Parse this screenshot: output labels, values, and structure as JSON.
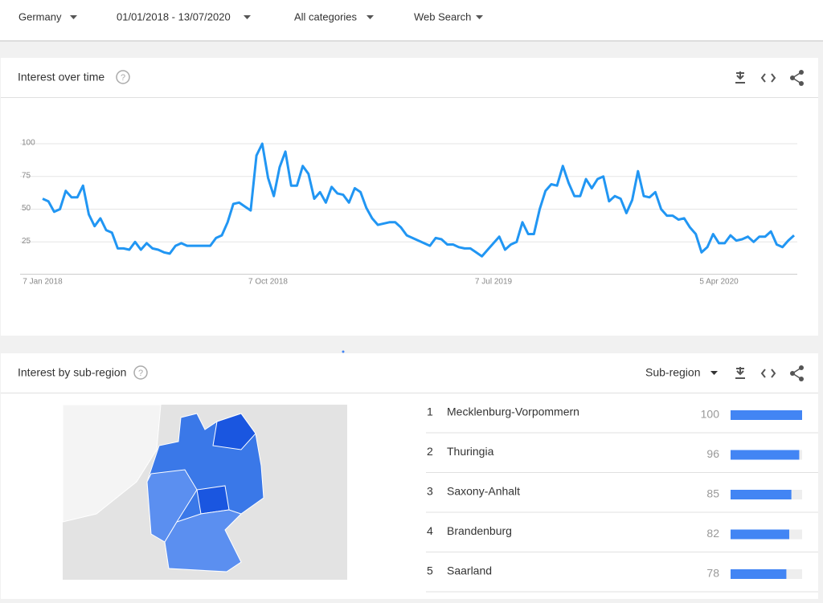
{
  "filters": [
    "Germany",
    "01/01/2018 - 13/07/2020",
    "All categories",
    "Web Search"
  ],
  "interest_over_time": {
    "title": "Interest over time",
    "chart": {
      "type": "line",
      "color": "#2196f3",
      "grid": true,
      "ylim": [
        0,
        100
      ],
      "yticks": [
        25,
        50,
        75,
        100
      ],
      "categories": [
        "7 Jan 2018",
        null,
        null,
        null,
        null,
        null,
        null,
        null,
        null,
        null,
        null,
        null,
        null,
        null,
        null,
        null,
        null,
        null,
        null,
        null,
        null,
        null,
        null,
        null,
        null,
        null,
        null,
        null,
        null,
        null,
        null,
        null,
        null,
        null,
        null,
        null,
        null,
        null,
        null,
        "7 Oct 2018",
        null,
        null,
        null,
        null,
        null,
        null,
        null,
        null,
        null,
        null,
        null,
        null,
        null,
        null,
        null,
        null,
        null,
        null,
        null,
        null,
        null,
        null,
        null,
        null,
        null,
        null,
        null,
        null,
        null,
        null,
        null,
        null,
        null,
        null,
        null,
        null,
        null,
        null,
        "7 Jul 2019",
        null,
        null,
        null,
        null,
        null,
        null,
        null,
        null,
        null,
        null,
        null,
        null,
        null,
        null,
        null,
        null,
        null,
        null,
        null,
        null,
        null,
        null,
        null,
        null,
        null,
        null,
        null,
        null,
        null,
        null,
        null,
        null,
        null,
        null,
        null,
        null,
        null,
        null,
        "5 Apr 2020",
        null,
        null,
        null,
        null,
        null,
        null,
        null,
        null,
        null,
        null,
        null,
        null,
        null
      ],
      "values": [
        58,
        56,
        48,
        50,
        64,
        59,
        59,
        68,
        46,
        37,
        43,
        34,
        32,
        20,
        20,
        19,
        25,
        19,
        24,
        20,
        19,
        17,
        16,
        22,
        24,
        22,
        22,
        22,
        22,
        22,
        28,
        30,
        40,
        54,
        55,
        52,
        49,
        91,
        100,
        74,
        60,
        82,
        94,
        68,
        68,
        83,
        77,
        58,
        63,
        55,
        67,
        62,
        61,
        55,
        66,
        63,
        51,
        43,
        38,
        39,
        40,
        40,
        36,
        30,
        28,
        26,
        24,
        22,
        28,
        27,
        23,
        23,
        21,
        20,
        20,
        17,
        14,
        19,
        24,
        29,
        19,
        23,
        25,
        40,
        31,
        31,
        50,
        64,
        69,
        68,
        83,
        70,
        60,
        60,
        73,
        66,
        73,
        75,
        56,
        60,
        58,
        47,
        57,
        79,
        60,
        59,
        63,
        50,
        45,
        45,
        42,
        43,
        36,
        31,
        17,
        21,
        31,
        24,
        24,
        30,
        26,
        27,
        29,
        25,
        29,
        29,
        33,
        23,
        21,
        26,
        30
      ]
    }
  },
  "interest_by_subregion": {
    "title": "Interest by sub-region",
    "resolution": "Sub-region",
    "bar_color": "#4285f4",
    "rows": [
      {
        "rank": 1,
        "name": "Mecklenburg-Vorpommern",
        "value": 100
      },
      {
        "rank": 2,
        "name": "Thuringia",
        "value": 96
      },
      {
        "rank": 3,
        "name": "Saxony-Anhalt",
        "value": 85
      },
      {
        "rank": 4,
        "name": "Brandenburg",
        "value": 82
      },
      {
        "rank": 5,
        "name": "Saarland",
        "value": 78
      }
    ]
  }
}
